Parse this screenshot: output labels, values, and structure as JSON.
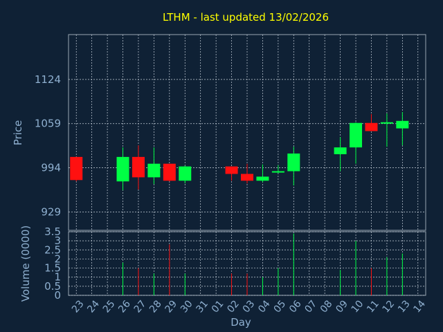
{
  "chart_data": [
    {
      "type": "candlestick",
      "title": "LTHM - last updated 13/02/2026",
      "ylabel": "Price",
      "yticks": [
        929,
        994,
        1059,
        1124
      ],
      "ylim": [
        902,
        1190
      ],
      "grid": true,
      "up_color": "#00ff44",
      "down_color": "#ff1010",
      "categories": [
        "23",
        "24",
        "25",
        "26",
        "27",
        "28",
        "29",
        "30",
        "31",
        "01",
        "02",
        "03",
        "04",
        "05",
        "06",
        "07",
        "08",
        "09",
        "10",
        "11",
        "12",
        "13",
        "14"
      ],
      "candles": [
        {
          "x": "23",
          "open": 1010,
          "high": 1010,
          "low": 974,
          "close": 976
        },
        {
          "x": "26",
          "open": 974,
          "high": 1024,
          "low": 961,
          "close": 1010
        },
        {
          "x": "27",
          "open": 1010,
          "high": 1027,
          "low": 962,
          "close": 980
        },
        {
          "x": "28",
          "open": 980,
          "high": 1024,
          "low": 970,
          "close": 1000
        },
        {
          "x": "29",
          "open": 1000,
          "high": 1000,
          "low": 974,
          "close": 975
        },
        {
          "x": "30",
          "open": 975,
          "high": 997,
          "low": 971,
          "close": 996
        },
        {
          "x": "02",
          "open": 996,
          "high": 996,
          "low": 975,
          "close": 985
        },
        {
          "x": "03",
          "open": 985,
          "high": 1000,
          "low": 971,
          "close": 975
        },
        {
          "x": "04",
          "open": 975,
          "high": 999,
          "low": 973,
          "close": 981
        },
        {
          "x": "05",
          "open": 987,
          "high": 998,
          "low": 986,
          "close": 989
        },
        {
          "x": "06",
          "open": 989,
          "high": 1025,
          "low": 968,
          "close": 1015
        },
        {
          "x": "09",
          "open": 1014,
          "high": 1039,
          "low": 989,
          "close": 1024
        },
        {
          "x": "10",
          "open": 1024,
          "high": 1061,
          "low": 1000,
          "close": 1060
        },
        {
          "x": "11",
          "open": 1060,
          "high": 1073,
          "low": 1048,
          "close": 1048
        },
        {
          "x": "12",
          "open": 1060,
          "high": 1074,
          "low": 1025,
          "close": 1061
        },
        {
          "x": "13",
          "open": 1052,
          "high": 1076,
          "low": 1027,
          "close": 1063
        }
      ]
    },
    {
      "type": "bar",
      "xlabel": "Day",
      "ylabel": "Volume (0000)",
      "yticks": [
        "0",
        "0.5",
        "1",
        "1.5",
        "2",
        "2.5",
        "3",
        "3.5"
      ],
      "ylim": [
        0,
        3.5
      ],
      "grid": true,
      "bars": [
        {
          "x": "26",
          "value": 1.8,
          "color": "#00ff44"
        },
        {
          "x": "27",
          "value": 1.5,
          "color": "#ff1010"
        },
        {
          "x": "28",
          "value": 1.2,
          "color": "#00ff44"
        },
        {
          "x": "29",
          "value": 2.8,
          "color": "#ff1010"
        },
        {
          "x": "30",
          "value": 1.2,
          "color": "#00ff44"
        },
        {
          "x": "02",
          "value": 1.2,
          "color": "#ff1010"
        },
        {
          "x": "03",
          "value": 1.2,
          "color": "#ff1010"
        },
        {
          "x": "04",
          "value": 1.0,
          "color": "#00ff44"
        },
        {
          "x": "05",
          "value": 1.5,
          "color": "#00ff44"
        },
        {
          "x": "06",
          "value": 3.4,
          "color": "#00ff44"
        },
        {
          "x": "09",
          "value": 1.4,
          "color": "#00ff44"
        },
        {
          "x": "10",
          "value": 3.0,
          "color": "#00ff44"
        },
        {
          "x": "11",
          "value": 1.5,
          "color": "#ff1010"
        },
        {
          "x": "12",
          "value": 2.1,
          "color": "#00ff44"
        },
        {
          "x": "13",
          "value": 2.3,
          "color": "#00ff44"
        }
      ]
    }
  ]
}
